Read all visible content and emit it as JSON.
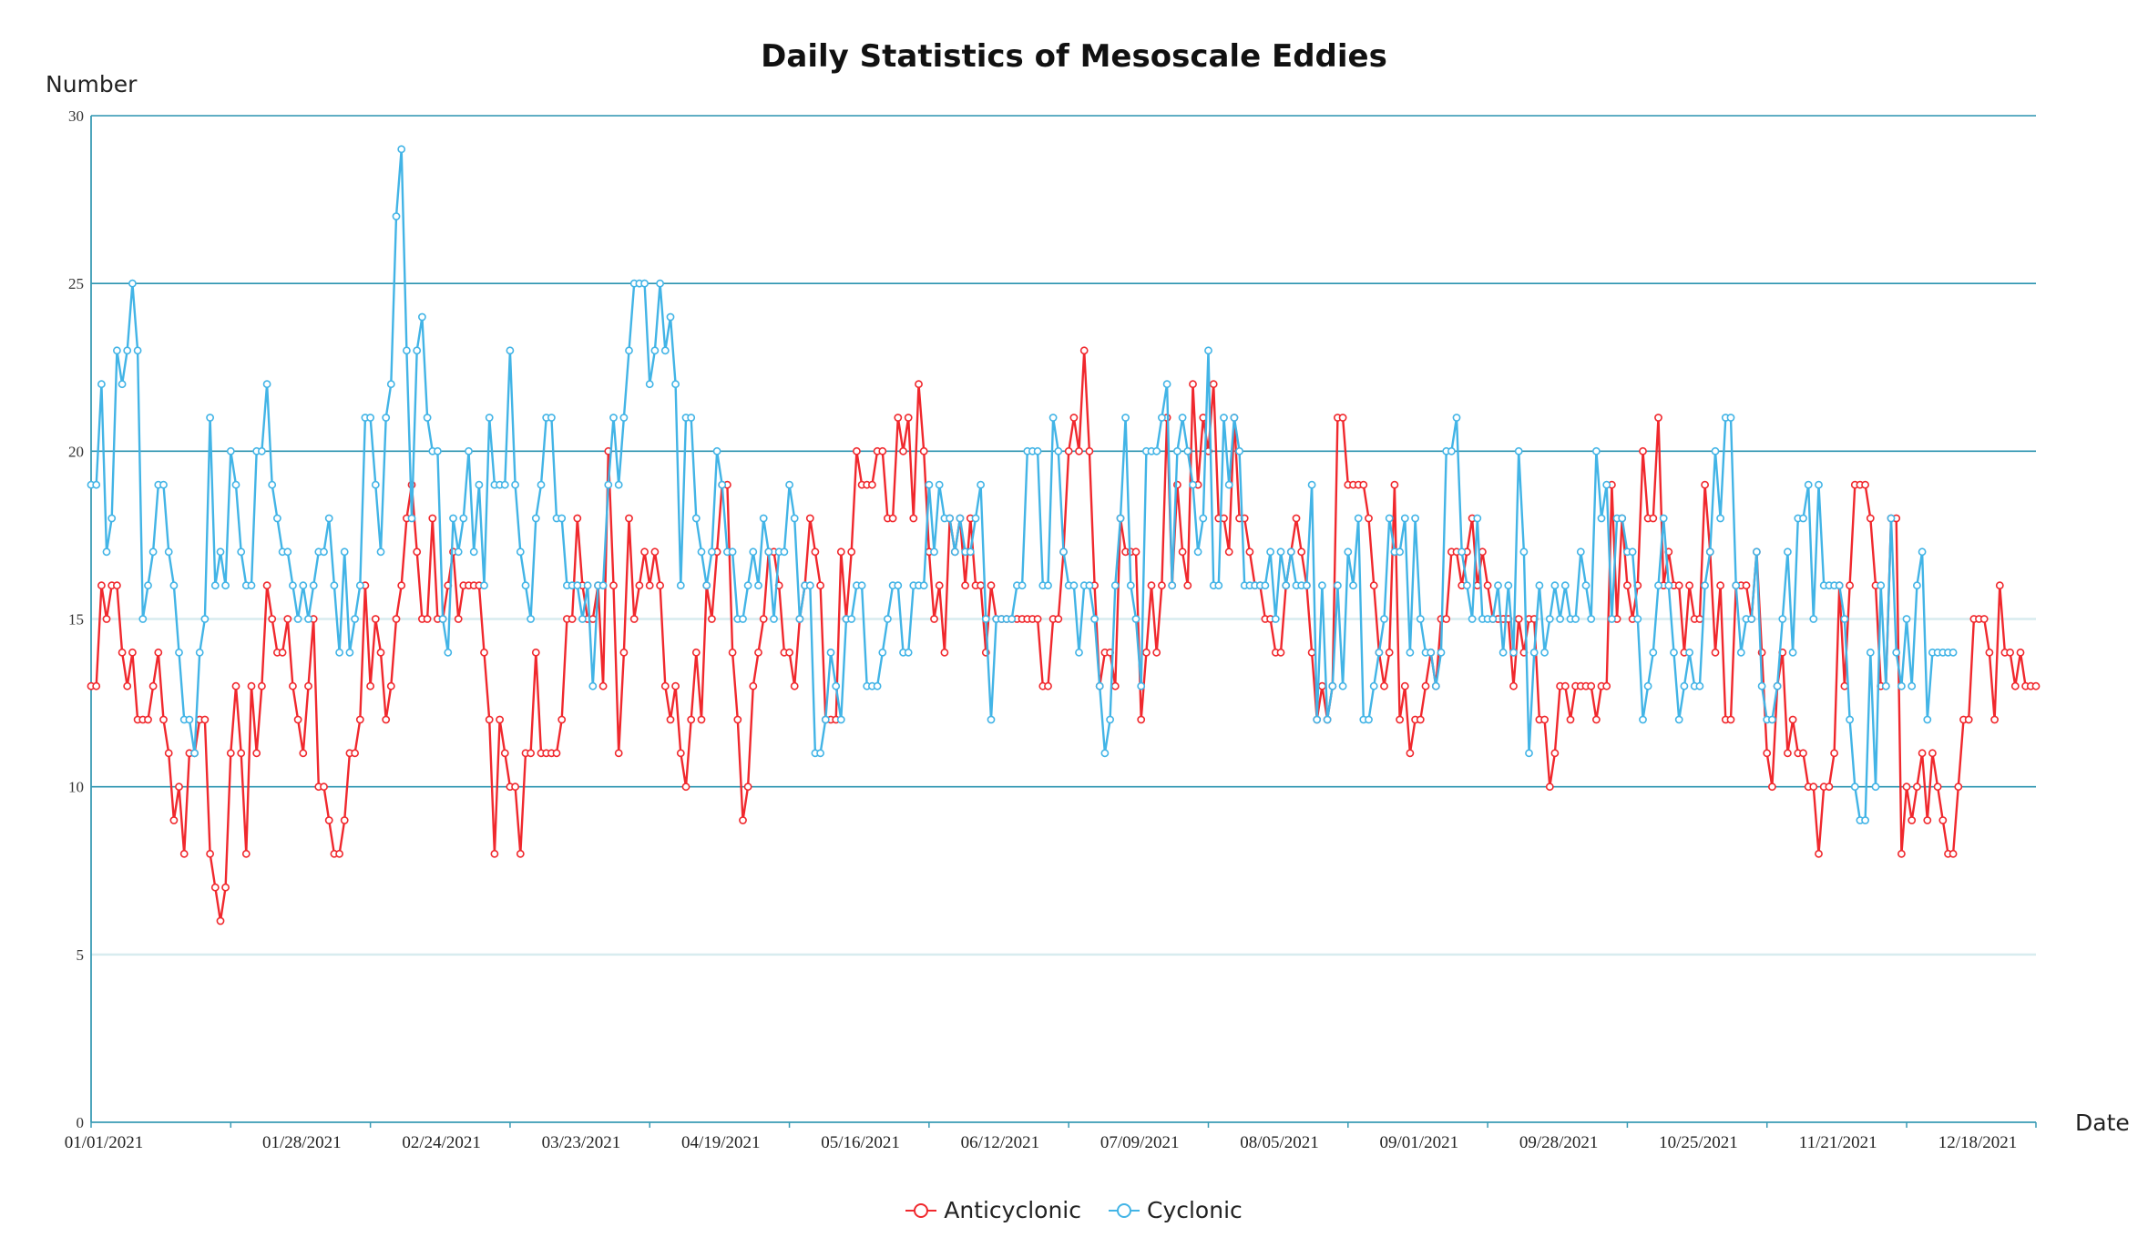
{
  "chart_data": {
    "type": "line",
    "title": "Daily Statistics of Mesoscale Eddies",
    "ylabel": "Number",
    "xlabel": "Date",
    "ylim": [
      0,
      30
    ],
    "yticks": [
      0,
      5,
      10,
      15,
      20,
      25,
      30
    ],
    "xlim": [
      "01/01/2021",
      "12/31/2021"
    ],
    "xticks": [
      "01/01/2021",
      "01/28/2021",
      "02/24/2021",
      "03/23/2021",
      "04/19/2021",
      "05/16/2021",
      "06/12/2021",
      "07/09/2021",
      "08/05/2021",
      "09/01/2021",
      "09/28/2021",
      "10/25/2021",
      "11/21/2021",
      "12/18/2021"
    ],
    "grid": "horizontal",
    "legend_position": "bottom-center",
    "series": [
      {
        "name": "Anticyclonic",
        "color": "#f0282d",
        "values": [
          13,
          13,
          16,
          15,
          16,
          16,
          14,
          13,
          14,
          12,
          12,
          12,
          13,
          14,
          12,
          11,
          9,
          10,
          8,
          11,
          11,
          12,
          12,
          8,
          7,
          6,
          7,
          11,
          13,
          11,
          8,
          13,
          11,
          13,
          16,
          15,
          14,
          14,
          15,
          13,
          12,
          11,
          13,
          15,
          10,
          10,
          9,
          8,
          8,
          9,
          11,
          11,
          12,
          16,
          13,
          15,
          14,
          12,
          13,
          15,
          16,
          18,
          19,
          17,
          15,
          15,
          18,
          15,
          15,
          16,
          17,
          15,
          16,
          16,
          16,
          16,
          14,
          12,
          8,
          12,
          11,
          10,
          10,
          8,
          11,
          11,
          14,
          11,
          11,
          11,
          11,
          12,
          15,
          15,
          18,
          16,
          15,
          15,
          16,
          13,
          20,
          16,
          11,
          14,
          18,
          15,
          16,
          17,
          16,
          17,
          16,
          13,
          12,
          13,
          11,
          10,
          12,
          14,
          12,
          16,
          15,
          17,
          19,
          19,
          14,
          12,
          9,
          10,
          13,
          14,
          15,
          17,
          17,
          16,
          14,
          14,
          13,
          15,
          16,
          18,
          17,
          16,
          12,
          12,
          12,
          17,
          15,
          17,
          20,
          19,
          19,
          19,
          20,
          20,
          18,
          18,
          21,
          20,
          21,
          18,
          22,
          20,
          17,
          15,
          16,
          14,
          18,
          17,
          18,
          16,
          18,
          16,
          16,
          14,
          16,
          15,
          15,
          15,
          15,
          15,
          15,
          15,
          15,
          15,
          13,
          13,
          15,
          15,
          17,
          20,
          21,
          20,
          23,
          20,
          16,
          13,
          14,
          14,
          13,
          18,
          17,
          17,
          17,
          12,
          14,
          16,
          14,
          16,
          21,
          16,
          19,
          17,
          16,
          22,
          19,
          21,
          20,
          22,
          18,
          18,
          17,
          21,
          18,
          18,
          17,
          16,
          16,
          15,
          15,
          14,
          14,
          16,
          17,
          18,
          17,
          16,
          14,
          12,
          13,
          12,
          13,
          21,
          21,
          19,
          19,
          19,
          19,
          18,
          16,
          14,
          13,
          14,
          19,
          12,
          13,
          11,
          12,
          12,
          13,
          14,
          13,
          15,
          15,
          17,
          17,
          16,
          17,
          18,
          16,
          17,
          16,
          15,
          15,
          15,
          15,
          13,
          15,
          14,
          15,
          15,
          12,
          12,
          10,
          11,
          13,
          13,
          12,
          13,
          13,
          13,
          13,
          12,
          13,
          13,
          19,
          15,
          18,
          16,
          15,
          16,
          20,
          18,
          18,
          21,
          16,
          17,
          16,
          16,
          14,
          16,
          15,
          15,
          19,
          17,
          14,
          16,
          12,
          12,
          16,
          16,
          16,
          15,
          17,
          14,
          11,
          10,
          13,
          14,
          11,
          12,
          11,
          11,
          10,
          10,
          8,
          10,
          10,
          11,
          16,
          13,
          16,
          19,
          19,
          19,
          18,
          16,
          13,
          13,
          18,
          18,
          8,
          10,
          9,
          10,
          11,
          9,
          11,
          10,
          9,
          8,
          8,
          10,
          12,
          12,
          15,
          15,
          15,
          14,
          12,
          16,
          14,
          14,
          13,
          14,
          13,
          13,
          13
        ]
      },
      {
        "name": "Cyclonic",
        "color": "#42b4e6",
        "values": [
          19,
          19,
          22,
          17,
          18,
          23,
          22,
          23,
          25,
          23,
          15,
          16,
          17,
          19,
          19,
          17,
          16,
          14,
          12,
          12,
          11,
          14,
          15,
          21,
          16,
          17,
          16,
          20,
          19,
          17,
          16,
          16,
          20,
          20,
          22,
          19,
          18,
          17,
          17,
          16,
          15,
          16,
          15,
          16,
          17,
          17,
          18,
          16,
          14,
          17,
          14,
          15,
          16,
          21,
          21,
          19,
          17,
          21,
          22,
          27,
          29,
          23,
          18,
          23,
          24,
          21,
          20,
          20,
          15,
          14,
          18,
          17,
          18,
          20,
          17,
          19,
          16,
          21,
          19,
          19,
          19,
          23,
          19,
          17,
          16,
          15,
          18,
          19,
          21,
          21,
          18,
          18,
          16,
          16,
          16,
          15,
          16,
          13,
          16,
          16,
          19,
          21,
          19,
          21,
          23,
          25,
          25,
          25,
          22,
          23,
          25,
          23,
          24,
          22,
          16,
          21,
          21,
          18,
          17,
          16,
          17,
          20,
          19,
          17,
          17,
          15,
          15,
          16,
          17,
          16,
          18,
          17,
          15,
          17,
          17,
          19,
          18,
          15,
          16,
          16,
          11,
          11,
          12,
          14,
          13,
          12,
          15,
          15,
          16,
          16,
          13,
          13,
          13,
          14,
          15,
          16,
          16,
          14,
          14,
          16,
          16,
          16,
          19,
          17,
          19,
          18,
          18,
          17,
          18,
          17,
          17,
          18,
          19,
          15,
          12,
          15,
          15,
          15,
          15,
          16,
          16,
          20,
          20,
          20,
          16,
          16,
          21,
          20,
          17,
          16,
          16,
          14,
          16,
          16,
          15,
          13,
          11,
          12,
          16,
          18,
          21,
          16,
          15,
          13,
          20,
          20,
          20,
          21,
          22,
          16,
          20,
          21,
          20,
          19,
          17,
          18,
          23,
          16,
          16,
          21,
          19,
          21,
          20,
          16,
          16,
          16,
          16,
          16,
          17,
          15,
          17,
          16,
          17,
          16,
          16,
          16,
          19,
          12,
          16,
          12,
          13,
          16,
          13,
          17,
          16,
          18,
          12,
          12,
          13,
          14,
          15,
          18,
          17,
          17,
          18,
          14,
          18,
          15,
          14,
          14,
          13,
          14,
          20,
          20,
          21,
          17,
          16,
          15,
          18,
          15,
          15,
          15,
          16,
          14,
          16,
          14,
          20,
          17,
          11,
          14,
          16,
          14,
          15,
          16,
          15,
          16,
          15,
          15,
          17,
          16,
          15,
          20,
          18,
          19,
          15,
          18,
          18,
          17,
          17,
          15,
          12,
          13,
          14,
          16,
          18,
          16,
          14,
          12,
          13,
          14,
          13,
          13,
          16,
          17,
          20,
          18,
          21,
          21,
          16,
          14,
          15,
          15,
          17,
          13,
          12,
          12,
          13,
          15,
          17,
          14,
          18,
          18,
          19,
          15,
          19,
          16,
          16,
          16,
          16,
          15,
          12,
          10,
          9,
          9,
          14,
          10,
          16,
          13,
          18,
          14,
          13,
          15,
          13,
          16,
          17,
          12,
          14,
          14,
          14,
          14,
          14
        ]
      }
    ]
  }
}
